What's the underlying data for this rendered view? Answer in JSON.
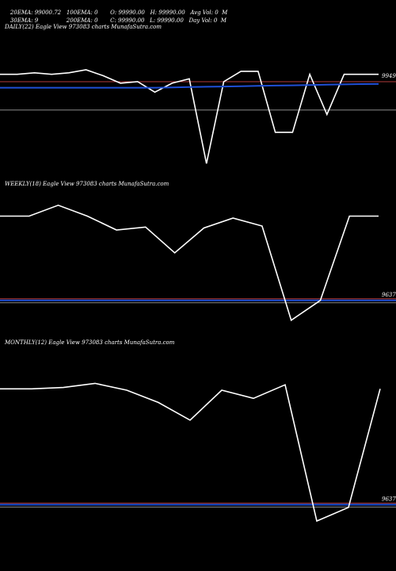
{
  "header": {
    "row1": [
      "20EMA: 99000.72",
      "100EMA: 0",
      "O: 99990.00",
      "H: 99990.00",
      "Avg Vol: 0  M"
    ],
    "row2": [
      "30EMA: 9",
      "200EMA: 0",
      "C: 99990.00",
      "L: 99990.00",
      "Day Vol: 0  M"
    ]
  },
  "chart_data": [
    {
      "type": "line",
      "title": "DAILY(22) Eagle   View  973083 charts MunafaSutra.com",
      "price_label": "9949",
      "series": [
        {
          "values": [
            9950,
            9950,
            9951,
            9950,
            9951,
            9953,
            9949,
            9944,
            9945,
            9938,
            9944,
            9947,
            9890,
            9945,
            9952,
            9952,
            9911,
            9911,
            9950,
            9923,
            9950,
            9950,
            9950
          ]
        },
        {
          "values": [
            9941,
            9941,
            9941,
            9941,
            9941,
            9941,
            9941,
            9941,
            9941,
            9941,
            9941.2,
            9941.4,
            9941.6,
            9941.8,
            9942,
            9942.2,
            9942.4,
            9942.6,
            9942.8,
            9943,
            9943.2,
            9943.4,
            9943.5
          ]
        }
      ],
      "hlines": [
        9945,
        9926
      ],
      "ylim": [
        9880,
        9985
      ],
      "colors": {
        "price": "#ffffff",
        "ema": "#1f4fd6",
        "ref_red": "#b23a3a",
        "ref_gray": "#8a8a8a"
      }
    },
    {
      "type": "line",
      "title": "WEEKLY(18) Eagle   View  973083 charts MunafaSutra.com",
      "price_label": "9637",
      "series": [
        {
          "values": [
            9722,
            9722,
            9733,
            9722,
            9708,
            9711,
            9685,
            9710,
            9720,
            9712,
            9617,
            9637,
            9722,
            9722
          ]
        }
      ],
      "hlines": [
        9637
      ],
      "ylim": [
        9600,
        9760
      ],
      "colors": {
        "price": "#ffffff",
        "ema": "#1f4fd6",
        "ref_red": "#b23a3a",
        "ref_gray": "#8a8a8a"
      }
    },
    {
      "type": "line",
      "title": "MONTHLY(12) Eagle   View  973083 charts MunafaSutra.com",
      "price_label": "9637",
      "series": [
        {
          "values": [
            9722,
            9722,
            9723,
            9726,
            9721,
            9712,
            9699,
            9721,
            9715,
            9725,
            9625,
            9635,
            9722
          ]
        }
      ],
      "hlines": [
        9637
      ],
      "ylim": [
        9600,
        9760
      ],
      "colors": {
        "price": "#ffffff",
        "ema": "#1f4fd6",
        "ref_red": "#b23a3a",
        "ref_gray": "#8a8a8a"
      }
    }
  ]
}
